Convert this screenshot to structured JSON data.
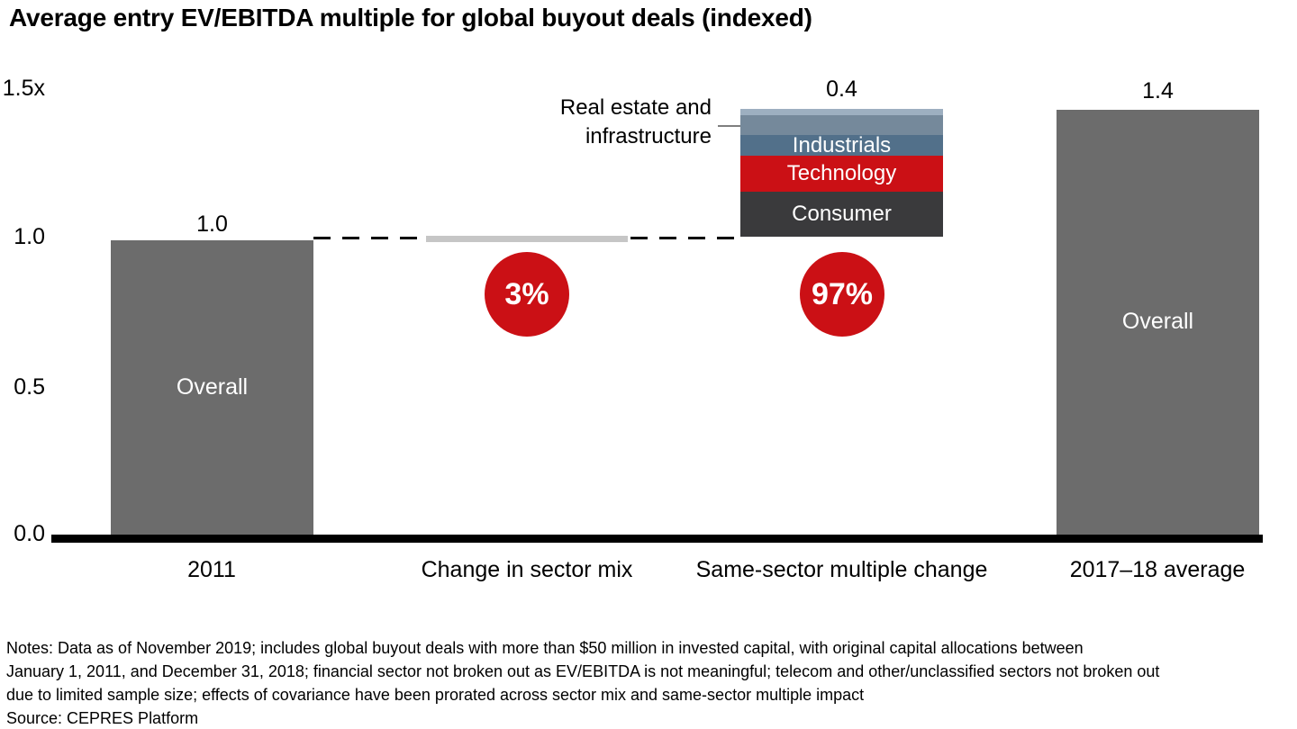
{
  "chart_data": {
    "type": "bar",
    "subtype": "waterfall with stacked contribution bar",
    "title": "Average entry EV/EBITDA multiple for global buyout deals (indexed)",
    "ylim": [
      0,
      1.5
    ],
    "yticks": [
      "1.5x",
      "1.0",
      "0.5",
      "0.0"
    ],
    "grid": false,
    "legend": "none",
    "categories": [
      "2011",
      "Change in sector mix",
      "Same-sector multiple change",
      "2017–18 average"
    ],
    "bars": [
      {
        "category": "2011",
        "value": 1.0,
        "value_label": "1.0",
        "inner_label": "Overall",
        "color": "#6c6c6c"
      },
      {
        "category": "Change in sector mix",
        "approx_value": 0.0,
        "contribution_share_label": "3%",
        "color": "#c6c6c6"
      },
      {
        "category": "Same-sector multiple change",
        "value": 0.4,
        "value_label": "0.4",
        "contribution_share_label": "97%",
        "segments": [
          {
            "label": "",
            "approx_value": 0.02,
            "color": "#9dafc0"
          },
          {
            "label": "Real estate and infrastructure",
            "approx_value": 0.06,
            "color": "#75899b",
            "label_placement": "outside-left"
          },
          {
            "label": "Industrials",
            "approx_value": 0.07,
            "color": "#52708a"
          },
          {
            "label": "Technology",
            "approx_value": 0.11,
            "color": "#cb1015"
          },
          {
            "label": "Consumer",
            "approx_value": 0.14,
            "color": "#3a3a3c"
          }
        ]
      },
      {
        "category": "2017–18 average",
        "value": 1.4,
        "value_label": "1.4",
        "inner_label": "Overall",
        "color": "#6c6c6c"
      }
    ],
    "connector_line_level": 1.0,
    "accent_red": "#cb1015"
  },
  "notes": {
    "lines": [
      "Notes: Data as of November 2019; includes global buyout deals with more than $50 million in invested capital, with original capital allocations between",
      "January 1, 2011, and December 31, 2018; financial sector not broken out as EV/EBITDA is not meaningful; telecom and other/unclassified sectors not broken out",
      "due to limited sample size; effects of covariance have been prorated across sector mix and same-sector multiple impact"
    ],
    "source": "Source: CEPRES Platform"
  }
}
